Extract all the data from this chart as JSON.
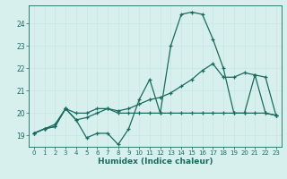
{
  "xlabel": "Humidex (Indice chaleur)",
  "x": [
    0,
    1,
    2,
    3,
    4,
    5,
    6,
    7,
    8,
    9,
    10,
    11,
    12,
    13,
    14,
    15,
    16,
    17,
    18,
    19,
    20,
    21,
    22,
    23
  ],
  "y_main": [
    19.1,
    19.3,
    19.4,
    20.2,
    19.7,
    18.9,
    19.1,
    19.1,
    18.6,
    19.3,
    20.6,
    21.5,
    20.0,
    23.0,
    24.4,
    24.5,
    24.4,
    23.3,
    22.0,
    20.0,
    20.0,
    21.7,
    20.0,
    19.9
  ],
  "y_upper": [
    19.1,
    19.3,
    19.5,
    20.2,
    20.0,
    20.0,
    20.2,
    20.2,
    20.1,
    20.2,
    20.4,
    20.6,
    20.7,
    20.9,
    21.2,
    21.5,
    21.9,
    22.2,
    21.6,
    21.6,
    21.8,
    21.7,
    21.6,
    19.9
  ],
  "y_lower": [
    19.1,
    19.3,
    19.4,
    20.2,
    19.7,
    19.8,
    20.0,
    20.2,
    20.0,
    20.0,
    20.0,
    20.0,
    20.0,
    20.0,
    20.0,
    20.0,
    20.0,
    20.0,
    20.0,
    20.0,
    20.0,
    20.0,
    20.0,
    19.9
  ],
  "line_color": "#1a6b5e",
  "bg_color": "#d7f0ee",
  "grid_color": "#c8e8e6",
  "ylim": [
    18.5,
    24.8
  ],
  "xlim": [
    -0.5,
    23.5
  ],
  "yticks": [
    19,
    20,
    21,
    22,
    23,
    24
  ],
  "xticks": [
    0,
    1,
    2,
    3,
    4,
    5,
    6,
    7,
    8,
    9,
    10,
    11,
    12,
    13,
    14,
    15,
    16,
    17,
    18,
    19,
    20,
    21,
    22,
    23
  ]
}
